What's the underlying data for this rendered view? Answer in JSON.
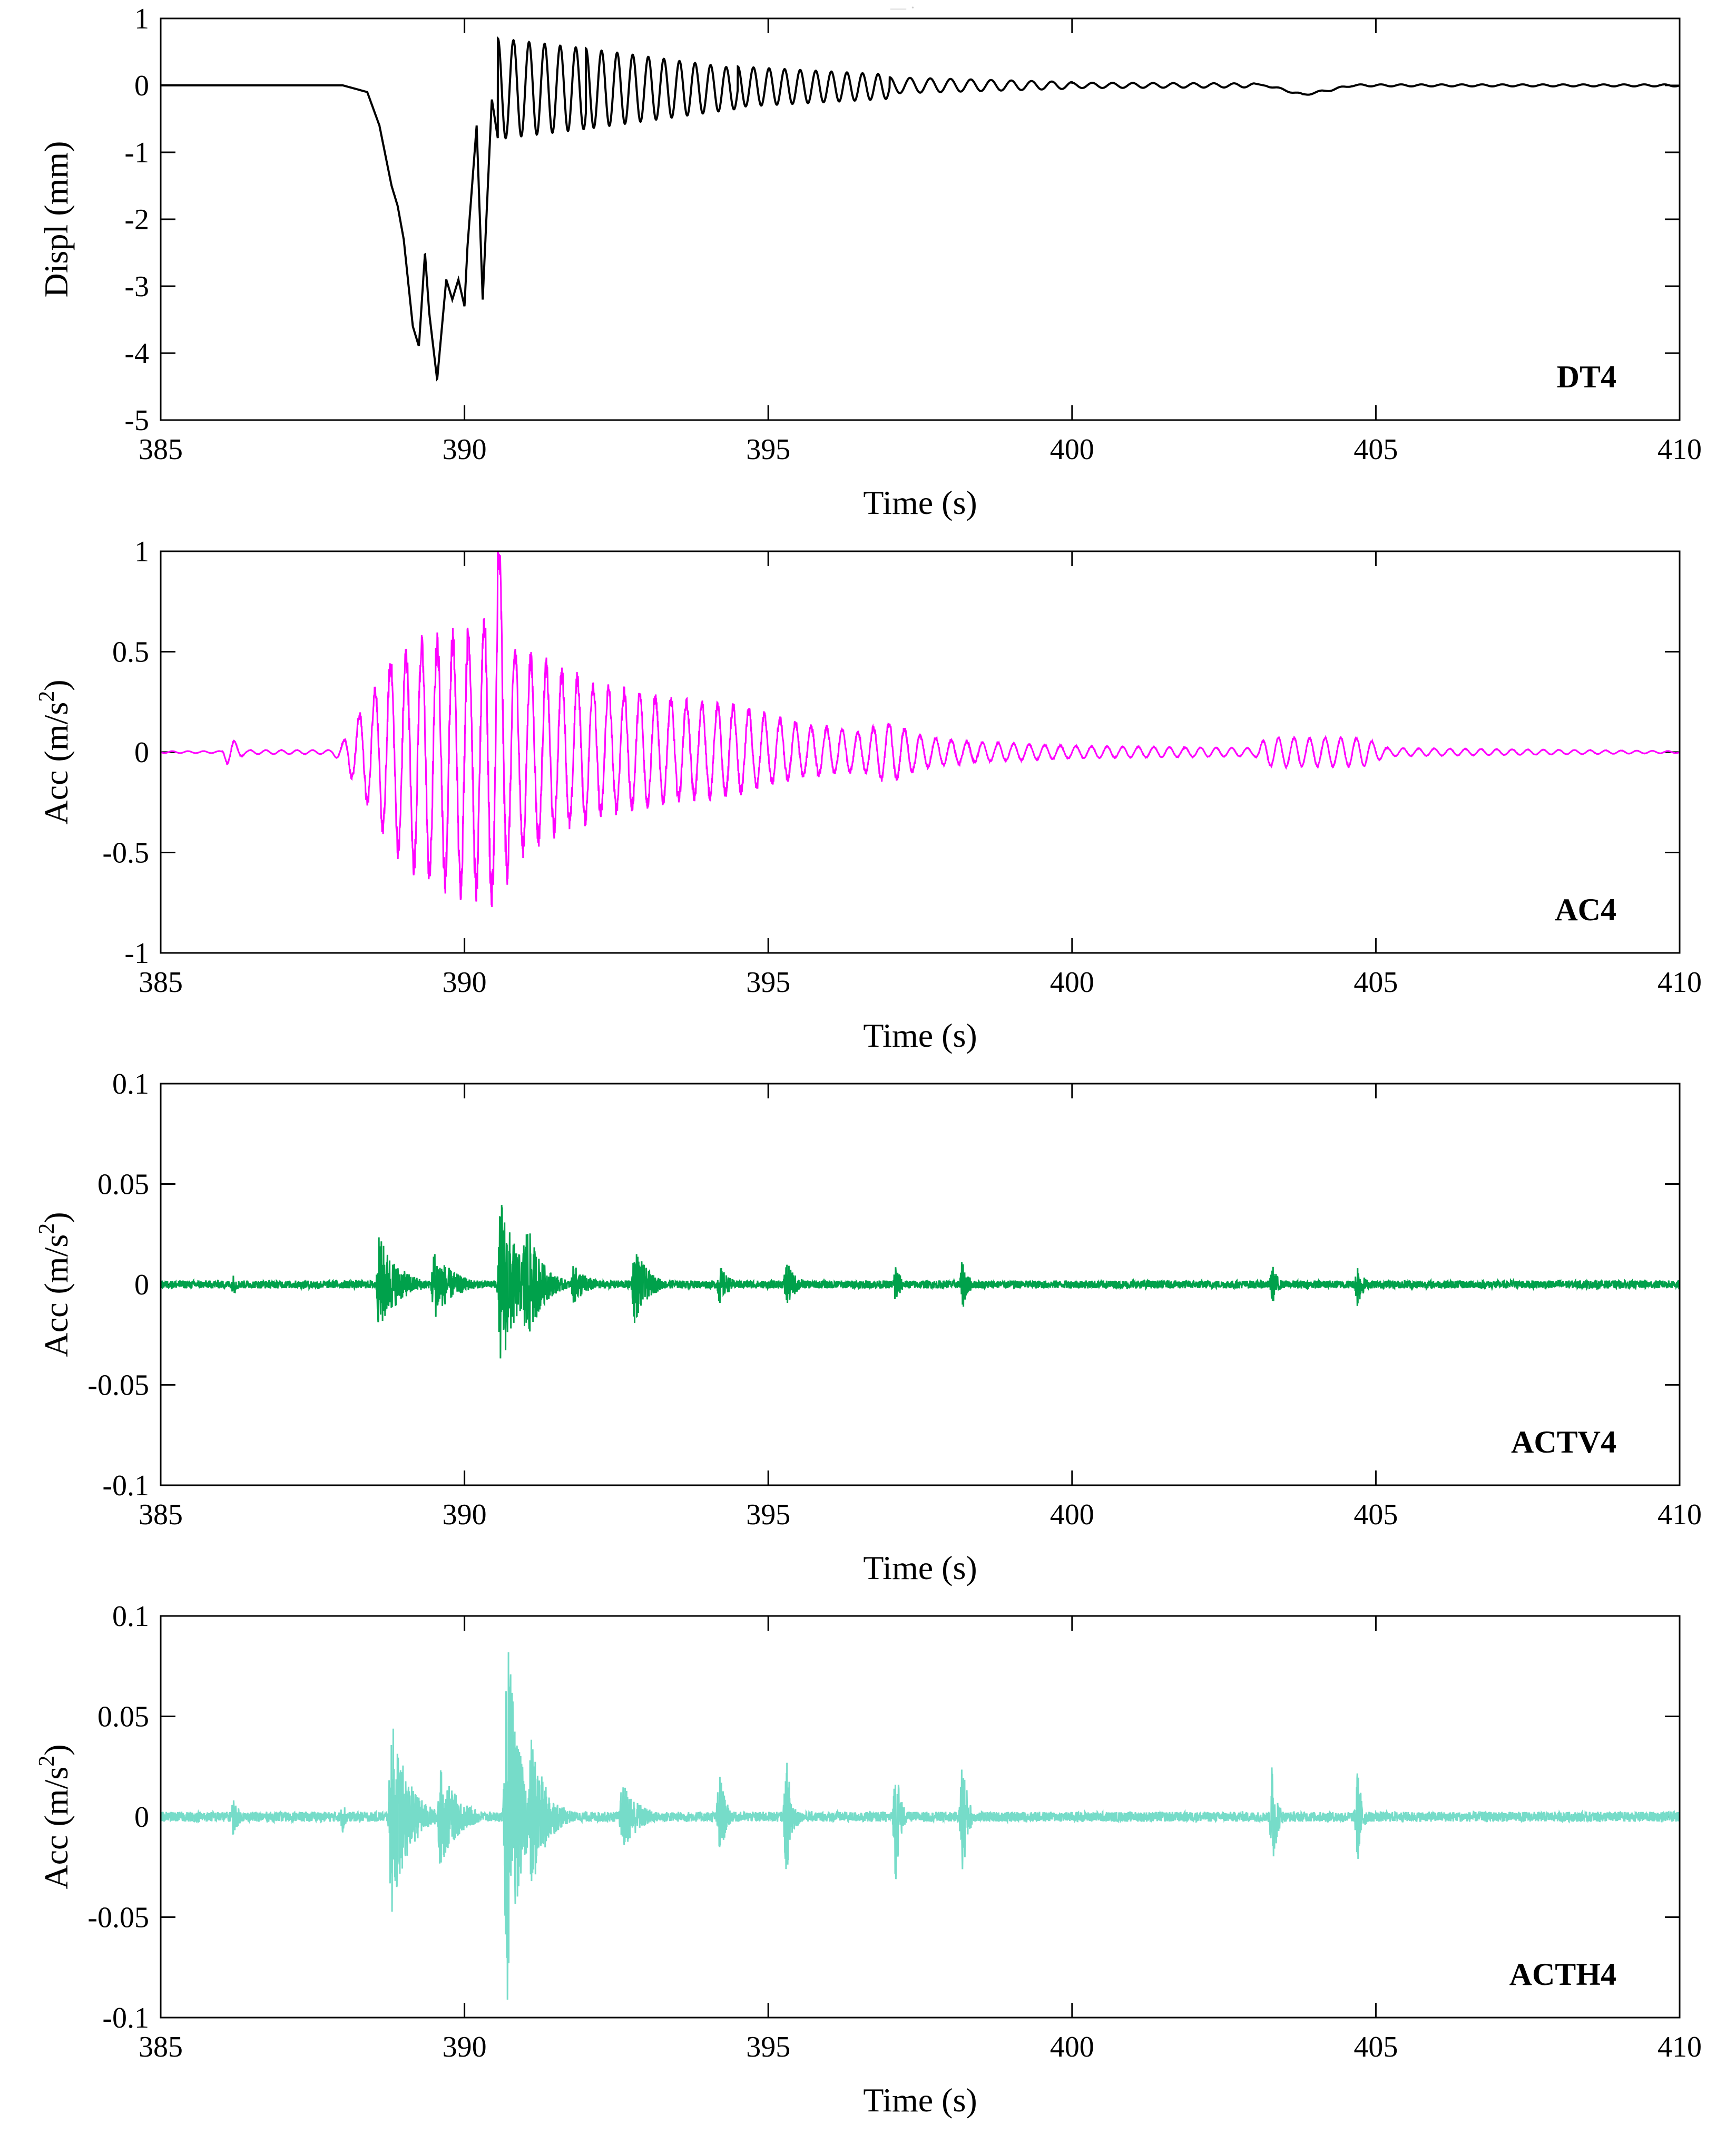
{
  "figure": {
    "top_caption": "— ·"
  },
  "chart_data": [
    {
      "type": "line",
      "panel_label": "DT4",
      "color": "#000000",
      "xlabel": "Time (s)",
      "ylabel": "Displ (mm)",
      "xlim": [
        385,
        410
      ],
      "ylim": [
        -5,
        1
      ],
      "x_ticks": [
        385,
        390,
        395,
        400,
        405,
        410
      ],
      "x_tick_labels": [
        "385",
        "390",
        "395",
        "400",
        "405",
        "410"
      ],
      "y_ticks": [
        1,
        0,
        -1,
        -2,
        -3,
        -4,
        -5
      ],
      "y_tick_labels": [
        "1",
        "0",
        "-1",
        "-2",
        "-3",
        "-4",
        "-5"
      ],
      "series": [
        {
          "name": "DT4",
          "x": [
            385.0,
            388.0,
            388.4,
            388.6,
            388.8,
            388.9,
            389.0,
            389.15,
            389.25,
            389.35,
            389.42,
            389.55,
            389.7,
            389.8,
            389.9,
            390.0,
            390.05,
            390.2,
            390.3,
            390.45,
            390.55
          ],
          "y": [
            0.0,
            0.0,
            -0.1,
            -0.6,
            -1.5,
            -1.8,
            -2.3,
            -3.6,
            -3.9,
            -2.5,
            -3.4,
            -4.4,
            -2.9,
            -3.2,
            -2.9,
            -3.3,
            -2.4,
            -0.6,
            -3.2,
            -0.2,
            -0.8
          ]
        }
      ],
      "oscillations": [
        {
          "from": 390.55,
          "to": 392.0,
          "center": -0.05,
          "amp_start": 0.75,
          "amp_end": 0.6,
          "freq_hz": 3.9
        },
        {
          "from": 392.0,
          "to": 394.5,
          "center": -0.05,
          "amp_start": 0.6,
          "amp_end": 0.3,
          "freq_hz": 3.9
        },
        {
          "from": 394.5,
          "to": 397.0,
          "center": -0.02,
          "amp_start": 0.3,
          "amp_end": 0.18,
          "freq_hz": 3.9
        },
        {
          "from": 397.0,
          "to": 400.0,
          "center": 0.0,
          "amp_start": 0.12,
          "amp_end": 0.05,
          "freq_hz": 3.0
        },
        {
          "from": 400.0,
          "to": 403.0,
          "center": 0.0,
          "amp_start": 0.04,
          "amp_end": 0.03,
          "freq_hz": 3.0
        }
      ],
      "features": [
        {
          "x": 403.2,
          "y": 0.0
        },
        {
          "x": 403.8,
          "y": -0.14
        },
        {
          "x": 404.3,
          "y": -0.06
        },
        {
          "x": 404.6,
          "y": 0.0
        },
        {
          "x": 410.0,
          "y": 0.0
        }
      ]
    },
    {
      "type": "line",
      "panel_label": "AC4",
      "color": "#ff00ff",
      "xlabel": "Time (s)",
      "ylabel": "Acc (m/s",
      "ylabel_sup": "2",
      "ylabel_end": ")",
      "xlim": [
        385,
        410
      ],
      "ylim": [
        -1,
        1
      ],
      "x_ticks": [
        385,
        390,
        395,
        400,
        405,
        410
      ],
      "x_tick_labels": [
        "385",
        "390",
        "395",
        "400",
        "405",
        "410"
      ],
      "y_ticks": [
        1,
        0.5,
        0,
        -0.5,
        -1
      ],
      "y_tick_labels": [
        "1",
        "0.5",
        "0",
        "-0.5",
        "-1"
      ],
      "envelope": {
        "times": [
          385.0,
          386.0,
          386.1,
          386.4,
          387.8,
          388.0,
          388.3,
          388.8,
          389.3,
          389.8,
          390.3,
          390.55,
          390.8,
          391.5,
          392.5,
          393.5,
          394.5,
          395.5,
          396.5,
          397.0,
          397.5,
          398.0,
          398.3,
          400.0,
          403.0,
          403.2,
          404.8,
          405.2,
          410.0
        ],
        "positive": [
          0.005,
          0.005,
          0.08,
          0.01,
          0.01,
          0.05,
          0.2,
          0.45,
          0.52,
          0.55,
          0.62,
          1.0,
          0.5,
          0.4,
          0.3,
          0.25,
          0.22,
          0.14,
          0.1,
          0.15,
          0.08,
          0.06,
          0.05,
          0.03,
          0.02,
          0.07,
          0.07,
          0.02,
          0.005
        ],
        "negative": [
          0.005,
          0.005,
          0.06,
          0.01,
          0.01,
          0.05,
          0.2,
          0.45,
          0.6,
          0.65,
          0.7,
          0.71,
          0.5,
          0.38,
          0.28,
          0.23,
          0.2,
          0.12,
          0.09,
          0.15,
          0.08,
          0.06,
          0.05,
          0.03,
          0.02,
          0.07,
          0.07,
          0.02,
          0.005
        ]
      },
      "freq_hz": 3.9,
      "noise": 0.12,
      "peak": {
        "x": 390.55,
        "y": 1.0
      },
      "trough": {
        "x": 390.4,
        "y": -0.71
      }
    },
    {
      "type": "line",
      "panel_label": "ACTV4",
      "color": "#00a14b",
      "xlabel": "Time (s)",
      "ylabel": "Acc (m/s",
      "ylabel_sup": "2",
      "ylabel_end": ")",
      "xlim": [
        385,
        410
      ],
      "ylim": [
        -0.1,
        0.1
      ],
      "x_ticks": [
        385,
        390,
        395,
        400,
        405,
        410
      ],
      "x_tick_labels": [
        "385",
        "390",
        "395",
        "400",
        "405",
        "410"
      ],
      "y_ticks": [
        0.1,
        0.05,
        0,
        -0.05,
        -0.1
      ],
      "y_tick_labels": [
        "0.1",
        "0.05",
        "0",
        "-0.05",
        "-0.1"
      ],
      "baseline_noise": 0.002,
      "bursts": [
        {
          "t": 386.2,
          "amp": 0.005,
          "width": 0.15
        },
        {
          "t": 388.6,
          "amp": 0.025,
          "width": 0.5
        },
        {
          "t": 389.5,
          "amp": 0.018,
          "width": 0.5
        },
        {
          "t": 390.6,
          "amp": 0.045,
          "width": 0.45
        },
        {
          "t": 391.0,
          "amp": 0.035,
          "width": 0.4
        },
        {
          "t": 391.8,
          "amp": 0.01,
          "width": 0.4
        },
        {
          "t": 392.8,
          "amp": 0.02,
          "width": 0.35
        },
        {
          "t": 394.2,
          "amp": 0.01,
          "width": 0.25
        },
        {
          "t": 395.3,
          "amp": 0.012,
          "width": 0.25
        },
        {
          "t": 397.1,
          "amp": 0.012,
          "width": 0.12
        },
        {
          "t": 398.2,
          "amp": 0.013,
          "width": 0.15
        },
        {
          "t": 403.3,
          "amp": 0.01,
          "width": 0.15
        },
        {
          "t": 404.7,
          "amp": 0.012,
          "width": 0.15
        }
      ]
    },
    {
      "type": "line",
      "panel_label": "ACTH4",
      "color": "#76dcc9",
      "xlabel": "Time (s)",
      "ylabel": "Acc (m/s",
      "ylabel_sup": "2",
      "ylabel_end": ")",
      "xlim": [
        385,
        410
      ],
      "ylim": [
        -0.1,
        0.1
      ],
      "x_ticks": [
        385,
        390,
        395,
        400,
        405,
        410
      ],
      "x_tick_labels": [
        "385",
        "390",
        "395",
        "400",
        "405",
        "410"
      ],
      "y_ticks": [
        0.1,
        0.05,
        0,
        -0.05,
        -0.1
      ],
      "y_tick_labels": [
        "0.1",
        "0.05",
        "0",
        "-0.05",
        "-0.1"
      ],
      "baseline_noise": 0.0025,
      "bursts": [
        {
          "t": 386.2,
          "amp": 0.01,
          "width": 0.15
        },
        {
          "t": 388.0,
          "amp": 0.008,
          "width": 0.12
        },
        {
          "t": 388.8,
          "amp": 0.05,
          "width": 0.45
        },
        {
          "t": 389.6,
          "amp": 0.025,
          "width": 0.5
        },
        {
          "t": 390.7,
          "amp": 0.1,
          "width": 0.3
        },
        {
          "t": 391.1,
          "amp": 0.04,
          "width": 0.4
        },
        {
          "t": 392.6,
          "amp": 0.018,
          "width": 0.45
        },
        {
          "t": 394.2,
          "amp": 0.025,
          "width": 0.15
        },
        {
          "t": 395.3,
          "amp": 0.03,
          "width": 0.15
        },
        {
          "t": 397.1,
          "amp": 0.032,
          "width": 0.12
        },
        {
          "t": 398.2,
          "amp": 0.035,
          "width": 0.12
        },
        {
          "t": 403.3,
          "amp": 0.03,
          "width": 0.12
        },
        {
          "t": 404.7,
          "amp": 0.025,
          "width": 0.12
        }
      ]
    }
  ]
}
